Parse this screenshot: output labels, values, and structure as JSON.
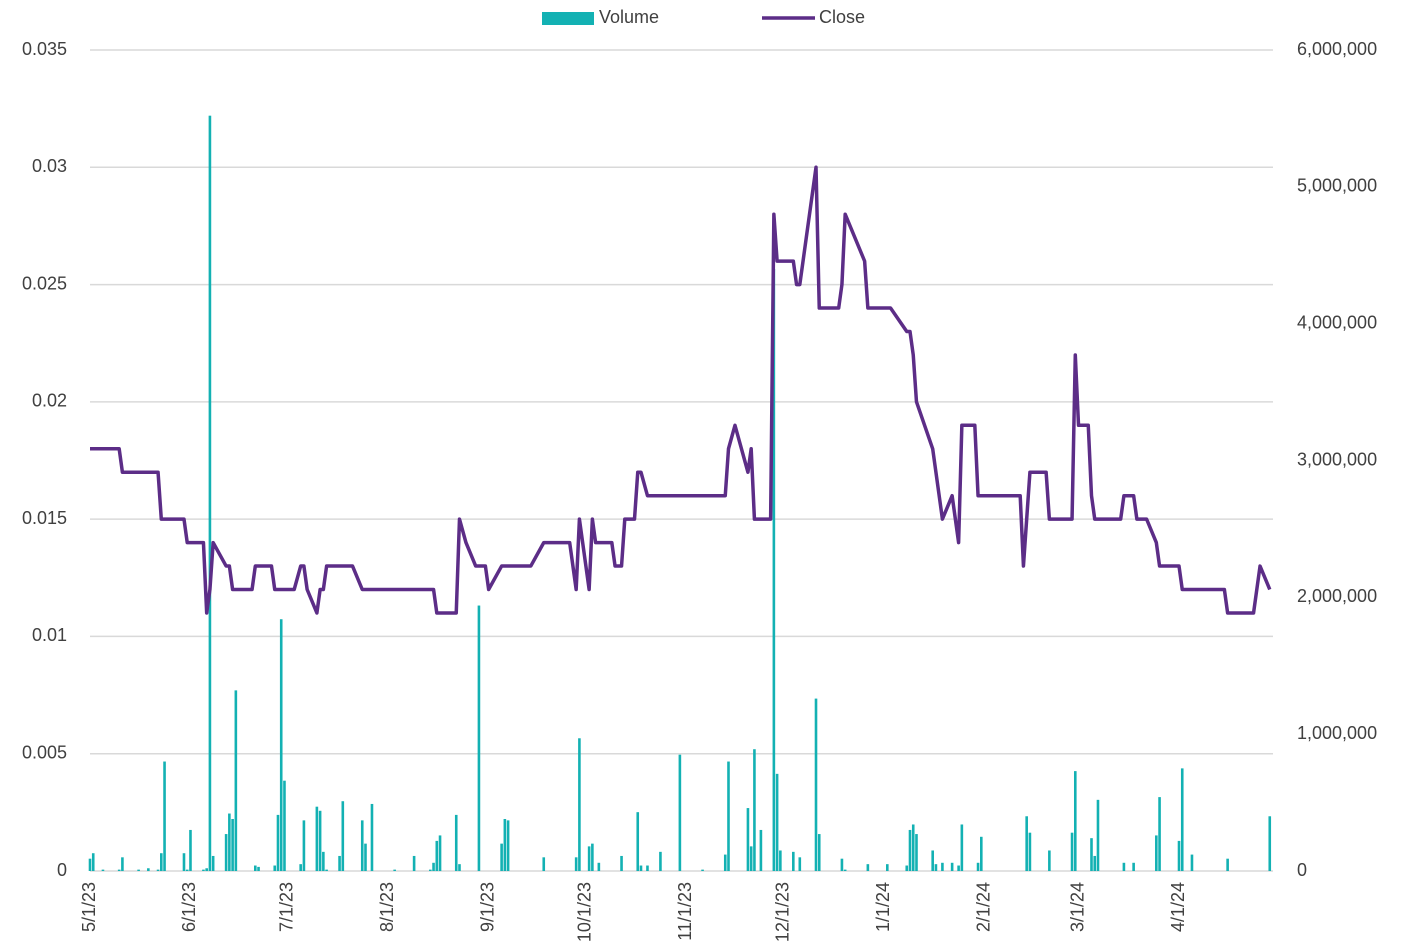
{
  "chart_data": {
    "type": "bar-line",
    "legend": "top",
    "grid": true,
    "xlim": [
      "5/1/23",
      "4/30/24"
    ],
    "xticks": [
      "5/1/23",
      "6/1/23",
      "7/1/23",
      "8/1/23",
      "9/1/23",
      "10/1/23",
      "11/1/23",
      "12/1/23",
      "1/1/24",
      "2/1/24",
      "3/1/24",
      "4/1/24"
    ],
    "ylim": [
      0,
      0.035
    ],
    "yticks": [
      0,
      0.005,
      0.01,
      0.015,
      0.02,
      0.025,
      0.03,
      0.035
    ],
    "y2lim": [
      0,
      6000000
    ],
    "y2ticks": [
      0,
      {
        "value": 1000000,
        "label": "1,000,000"
      },
      {
        "value": 2000000,
        "label": "2,000,000"
      },
      {
        "value": 3000000,
        "label": "3,000,000"
      },
      {
        "value": 4000000,
        "label": "4,000,000"
      },
      {
        "value": 5000000,
        "label": "5,000,000"
      },
      {
        "value": 6000000,
        "label": "6,000,000"
      }
    ],
    "x": [
      "5/1/23",
      "5/2/23",
      "5/5/23",
      "5/10/23",
      "5/11/23",
      "5/16/23",
      "5/19/23",
      "5/22/23",
      "5/23/23",
      "5/24/23",
      "5/26/23",
      "5/30/23",
      "5/31/23",
      "6/1/23",
      "6/5/23",
      "6/6/23",
      "6/7/23",
      "6/8/23",
      "6/12/23",
      "6/13/23",
      "6/14/23",
      "6/15/23",
      "6/20/23",
      "6/21/23",
      "6/22/23",
      "6/26/23",
      "6/27/23",
      "6/28/23",
      "6/29/23",
      "6/30/23",
      "7/3/23",
      "7/5/23",
      "7/6/23",
      "7/7/23",
      "7/10/23",
      "7/11/23",
      "7/12/23",
      "7/13/23",
      "7/17/23",
      "7/18/23",
      "7/21/23",
      "7/24/23",
      "7/25/23",
      "7/27/23",
      "8/3/23",
      "8/9/23",
      "8/14/23",
      "8/15/23",
      "8/16/23",
      "8/17/23",
      "8/22/23",
      "8/23/23",
      "8/25/23",
      "8/28/23",
      "8/29/23",
      "8/31/23",
      "9/1/23",
      "9/5/23",
      "9/6/23",
      "9/7/23",
      "9/14/23",
      "9/18/23",
      "9/26/23",
      "9/28/23",
      "9/29/23",
      "10/2/23",
      "10/3/23",
      "10/4/23",
      "10/5/23",
      "10/9/23",
      "10/10/23",
      "10/12/23",
      "10/13/23",
      "10/16/23",
      "10/17/23",
      "10/18/23",
      "10/20/23",
      "10/24/23",
      "10/30/23",
      "11/6/23",
      "11/13/23",
      "11/14/23",
      "11/16/23",
      "11/20/23",
      "11/21/23",
      "11/22/23",
      "11/24/23",
      "11/27/23",
      "11/28/23",
      "11/29/23",
      "11/30/23",
      "12/1/23",
      "12/4/23",
      "12/5/23",
      "12/6/23",
      "12/7/23",
      "12/11/23",
      "12/12/23",
      "12/18/23",
      "12/19/23",
      "12/20/23",
      "12/26/23",
      "12/27/23",
      "1/2/24",
      "1/3/24",
      "1/8/24",
      "1/9/24",
      "1/10/24",
      "1/11/24",
      "1/16/24",
      "1/17/24",
      "1/19/24",
      "1/22/24",
      "1/24/24",
      "1/25/24",
      "1/29/24",
      "1/30/24",
      "1/31/24",
      "2/12/24",
      "2/13/24",
      "2/14/24",
      "2/15/24",
      "2/20/24",
      "2/21/24",
      "2/28/24",
      "2/29/24",
      "3/1/24",
      "3/4/24",
      "3/5/24",
      "3/6/24",
      "3/7/24",
      "3/14/24",
      "3/15/24",
      "3/18/24",
      "3/19/24",
      "3/22/24",
      "3/25/24",
      "3/26/24",
      "4/1/24",
      "4/2/24",
      "4/5/24",
      "4/15/24",
      "4/16/24",
      "4/24/24",
      "4/26/24",
      "4/29/24"
    ],
    "series": [
      {
        "name": "Volume",
        "color": "#13b1b3",
        "axis": "y2",
        "values": [
          90000,
          130000,
          10000,
          10000,
          100000,
          10000,
          20000,
          10000,
          130000,
          800000,
          0,
          130000,
          10000,
          300000,
          10000,
          20000,
          5520000,
          110000,
          270000,
          420000,
          380000,
          1320000,
          0,
          40000,
          30000,
          0,
          40000,
          410000,
          1840000,
          660000,
          0,
          50000,
          370000,
          0,
          470000,
          440000,
          140000,
          10000,
          110000,
          510000,
          0,
          370000,
          200000,
          490000,
          10000,
          110000,
          10000,
          60000,
          220000,
          260000,
          410000,
          50000,
          0,
          0,
          1940000,
          0,
          0,
          200000,
          380000,
          370000,
          0,
          100000,
          0,
          100000,
          970000,
          180000,
          200000,
          0,
          60000,
          0,
          0,
          110000,
          0,
          0,
          430000,
          40000,
          40000,
          140000,
          850000,
          10000,
          120000,
          800000,
          0,
          460000,
          180000,
          890000,
          300000,
          0,
          4400000,
          710000,
          150000,
          0,
          140000,
          0,
          100000,
          0,
          1260000,
          270000,
          0,
          90000,
          10000,
          0,
          50000,
          50000,
          0,
          40000,
          300000,
          340000,
          270000,
          150000,
          50000,
          60000,
          60000,
          40000,
          340000,
          0,
          60000,
          250000,
          0,
          0,
          400000,
          280000,
          0,
          150000,
          280000,
          730000,
          0,
          0,
          240000,
          110000,
          520000,
          0,
          60000,
          60000,
          0,
          0,
          260000,
          540000,
          220000,
          750000,
          120000,
          0,
          90000,
          0,
          0,
          400000
        ]
      },
      {
        "name": "Close",
        "color": "#5c2d87",
        "values": [
          0.018,
          0.018,
          0.018,
          0.018,
          0.017,
          0.017,
          0.017,
          0.017,
          0.015,
          0.015,
          0.015,
          0.015,
          0.014,
          0.014,
          0.014,
          0.011,
          0.012,
          0.014,
          0.013,
          0.013,
          0.012,
          0.012,
          0.012,
          0.013,
          0.013,
          0.013,
          0.012,
          0.012,
          0.012,
          0.012,
          0.012,
          0.013,
          0.013,
          0.012,
          0.011,
          0.012,
          0.012,
          0.013,
          0.013,
          0.013,
          0.013,
          0.012,
          0.012,
          0.012,
          0.012,
          0.012,
          0.012,
          0.012,
          0.011,
          0.011,
          0.011,
          0.015,
          0.014,
          0.013,
          0.013,
          0.013,
          0.012,
          0.013,
          0.013,
          0.013,
          0.013,
          0.014,
          0.014,
          0.012,
          0.015,
          0.012,
          0.015,
          0.014,
          0.014,
          0.014,
          0.013,
          0.013,
          0.015,
          0.015,
          0.017,
          0.017,
          0.016,
          0.016,
          0.016,
          0.016,
          0.016,
          0.018,
          0.019,
          0.017,
          0.018,
          0.015,
          0.015,
          0.015,
          0.028,
          0.026,
          0.026,
          0.026,
          0.026,
          0.025,
          0.025,
          0.026,
          0.03,
          0.024,
          0.024,
          0.025,
          0.028,
          0.026,
          0.024,
          0.024,
          0.024,
          0.023,
          0.023,
          0.022,
          0.02,
          0.018,
          0.017,
          0.015,
          0.016,
          0.014,
          0.019,
          0.019,
          0.016,
          0.016,
          0.016,
          0.013,
          0.015,
          0.017,
          0.017,
          0.015,
          0.015,
          0.022,
          0.019,
          0.019,
          0.016,
          0.015,
          0.015,
          0.015,
          0.016,
          0.016,
          0.015,
          0.015,
          0.014,
          0.013,
          0.013,
          0.012,
          0.012,
          0.012,
          0.011,
          0.011,
          0.013,
          0.012
        ]
      }
    ]
  }
}
